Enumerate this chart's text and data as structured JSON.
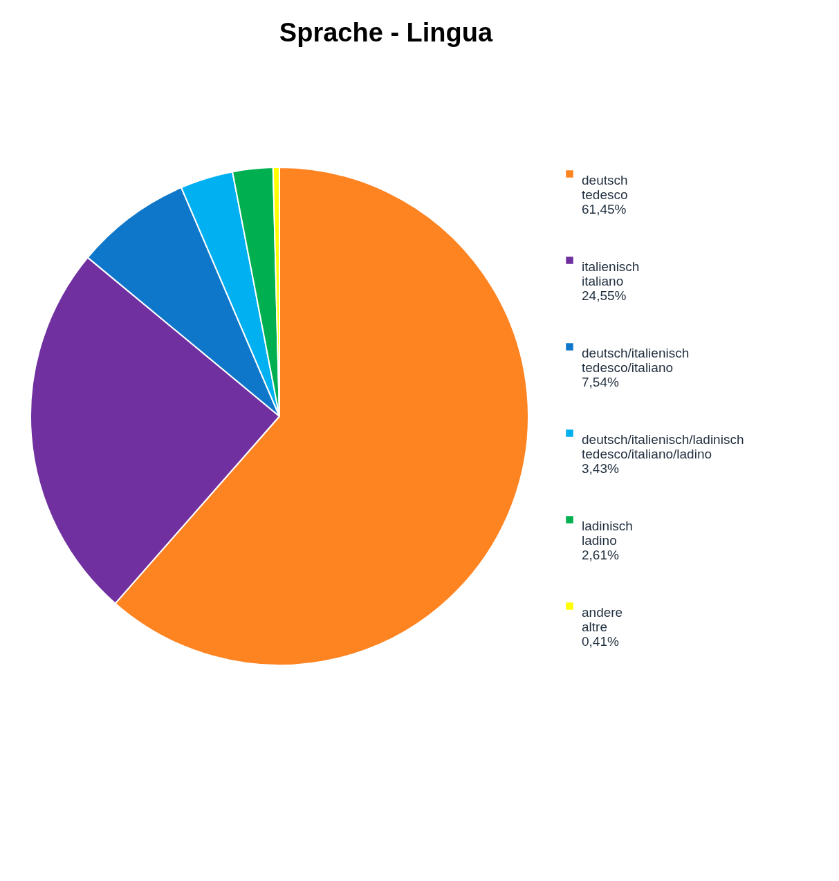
{
  "chart_data": {
    "type": "pie",
    "title": "Sprache - Lingua",
    "categories": [
      "deutsch\ntedesco",
      "italienisch\nitaliano",
      "deutsch/italienisch\ntedesco/italiano",
      "deutsch/italienisch/ladinisch\ntedesco/italiano/ladino",
      "ladinisch\nladino",
      "andere\naltre"
    ],
    "values": [
      61.45,
      24.55,
      7.54,
      3.43,
      2.61,
      0.41
    ],
    "value_labels": [
      "61,45%",
      "24,55%",
      "7,54%",
      "3,43%",
      "2,61%",
      "0,41%"
    ],
    "colors": [
      "#fe8321",
      "#7030a0",
      "#0f77c9",
      "#00b0f0",
      "#00b050",
      "#ffff00"
    ],
    "legend": "right"
  }
}
